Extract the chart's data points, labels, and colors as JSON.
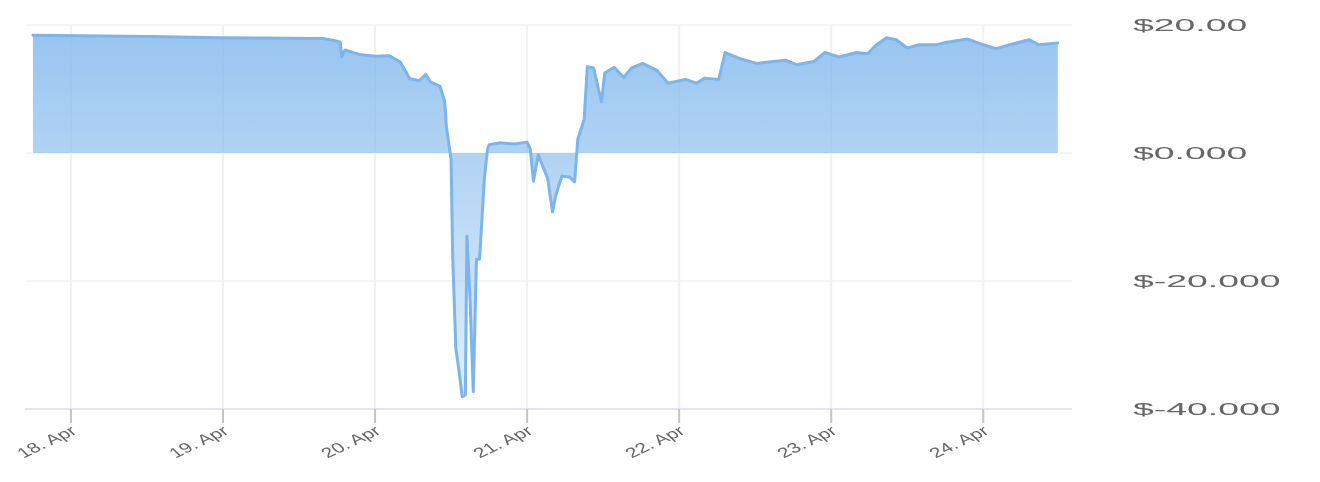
{
  "chart_data": {
    "type": "area",
    "xlim": [
      "--04-17T16:45",
      "--04-24T14:00"
    ],
    "xticks": [
      {
        "value": "--04-18",
        "label": "18. Apr"
      },
      {
        "value": "--04-19",
        "label": "19. Apr"
      },
      {
        "value": "--04-20",
        "label": "20. Apr"
      },
      {
        "value": "--04-21",
        "label": "21. Apr"
      },
      {
        "value": "--04-22",
        "label": "22. Apr"
      },
      {
        "value": "--04-23",
        "label": "23. Apr"
      },
      {
        "value": "--04-24",
        "label": "24. Apr"
      }
    ],
    "ylim": [
      -40,
      20
    ],
    "yticks": [
      {
        "value": 20,
        "label": "$20.00"
      },
      {
        "value": 0,
        "label": "$0.000"
      },
      {
        "value": -20,
        "label": "$-20.000"
      },
      {
        "value": -40,
        "label": "$-40.000"
      }
    ],
    "grid": true,
    "x": [
      "--04-17T18:00",
      "--04-18T12:30",
      "--04-18T23:30",
      "--04-19T15:45",
      "--04-19T17:30",
      "--04-19T18:30",
      "--04-19T18:45",
      "--04-19T19:15",
      "--04-19T21:30",
      "--04-20T00:00",
      "--04-20T02:15",
      "--04-20T04:00",
      "--04-20T05:30",
      "--04-20T07:00",
      "--04-20T08:00",
      "--04-20T08:45",
      "--04-20T10:15",
      "--04-20T11:00",
      "--04-20T11:15",
      "--04-20T12:00",
      "--04-20T12:15",
      "--04-20T12:45",
      "--04-20T13:15",
      "--04-20T13:45",
      "--04-20T14:15",
      "--04-20T14:30",
      "--04-20T15:00",
      "--04-20T15:30",
      "--04-20T16:00",
      "--04-20T16:30",
      "--04-20T17:15",
      "--04-20T17:45",
      "--04-20T18:00",
      "--04-20T19:45",
      "--04-20T22:00",
      "--04-21T00:00",
      "--04-21T00:30",
      "--04-21T01:00",
      "--04-21T01:45",
      "--04-21T02:15",
      "--04-21T03:15",
      "--04-21T04:00",
      "--04-21T04:30",
      "--04-21T05:30",
      "--04-21T06:45",
      "--04-21T07:30",
      "--04-21T08:00",
      "--04-21T09:00",
      "--04-21T09:30",
      "--04-21T10:30",
      "--04-21T11:15",
      "--04-21T11:45",
      "--04-21T12:15",
      "--04-21T13:45",
      "--04-21T15:15",
      "--04-21T16:30",
      "--04-21T18:15",
      "--04-21T20:30",
      "--04-21T22:15",
      "--04-22T01:00",
      "--04-22T02:45",
      "--04-22T04:00",
      "--04-22T06:15",
      "--04-22T07:15",
      "--04-22T10:00",
      "--04-22T12:15",
      "--04-22T16:45",
      "--04-22T18:30",
      "--04-22T21:15",
      "--04-22T23:00",
      "--04-23T01:15",
      "--04-23T04:00",
      "--04-23T05:45",
      "--04-23T07:00",
      "--04-23T08:45",
      "--04-23T10:15",
      "--04-23T12:00",
      "--04-23T13:45",
      "--04-23T16:30",
      "--04-23T18:15",
      "--04-23T21:30",
      "--04-23T23:45",
      "--04-24T02:00",
      "--04-24T04:30",
      "--04-24T07:15",
      "--04-24T08:45",
      "--04-24T11:45"
    ],
    "series": [
      {
        "color": "#7cb5ec",
        "values": [
          18.4,
          18.2,
          18.0,
          17.9,
          17.6,
          17.3,
          15.0,
          16.1,
          15.4,
          15.1,
          15.2,
          14.2,
          11.6,
          11.3,
          12.3,
          11.1,
          10.4,
          8.0,
          4.2,
          -1.0,
          -16.0,
          -30.6,
          -34.0,
          -38.1,
          -37.8,
          -13.0,
          -23.0,
          -37.3,
          -16.6,
          -16.6,
          -4.0,
          0.6,
          1.3,
          1.6,
          1.4,
          1.7,
          0.6,
          -4.4,
          -0.3,
          -1.5,
          -4.0,
          -9.2,
          -6.7,
          -3.6,
          -3.8,
          -4.5,
          2.2,
          5.2,
          13.5,
          13.3,
          10.0,
          8.0,
          12.5,
          13.4,
          11.8,
          13.3,
          14.0,
          12.9,
          10.9,
          11.5,
          10.9,
          11.7,
          11.5,
          15.7,
          14.6,
          14.0,
          14.5,
          13.8,
          14.3,
          15.7,
          15.0,
          15.7,
          15.5,
          16.8,
          18.0,
          17.7,
          16.4,
          16.9,
          16.9,
          17.3,
          17.8,
          17.0,
          16.3,
          17.0,
          17.7,
          16.9,
          17.2
        ]
      }
    ]
  }
}
